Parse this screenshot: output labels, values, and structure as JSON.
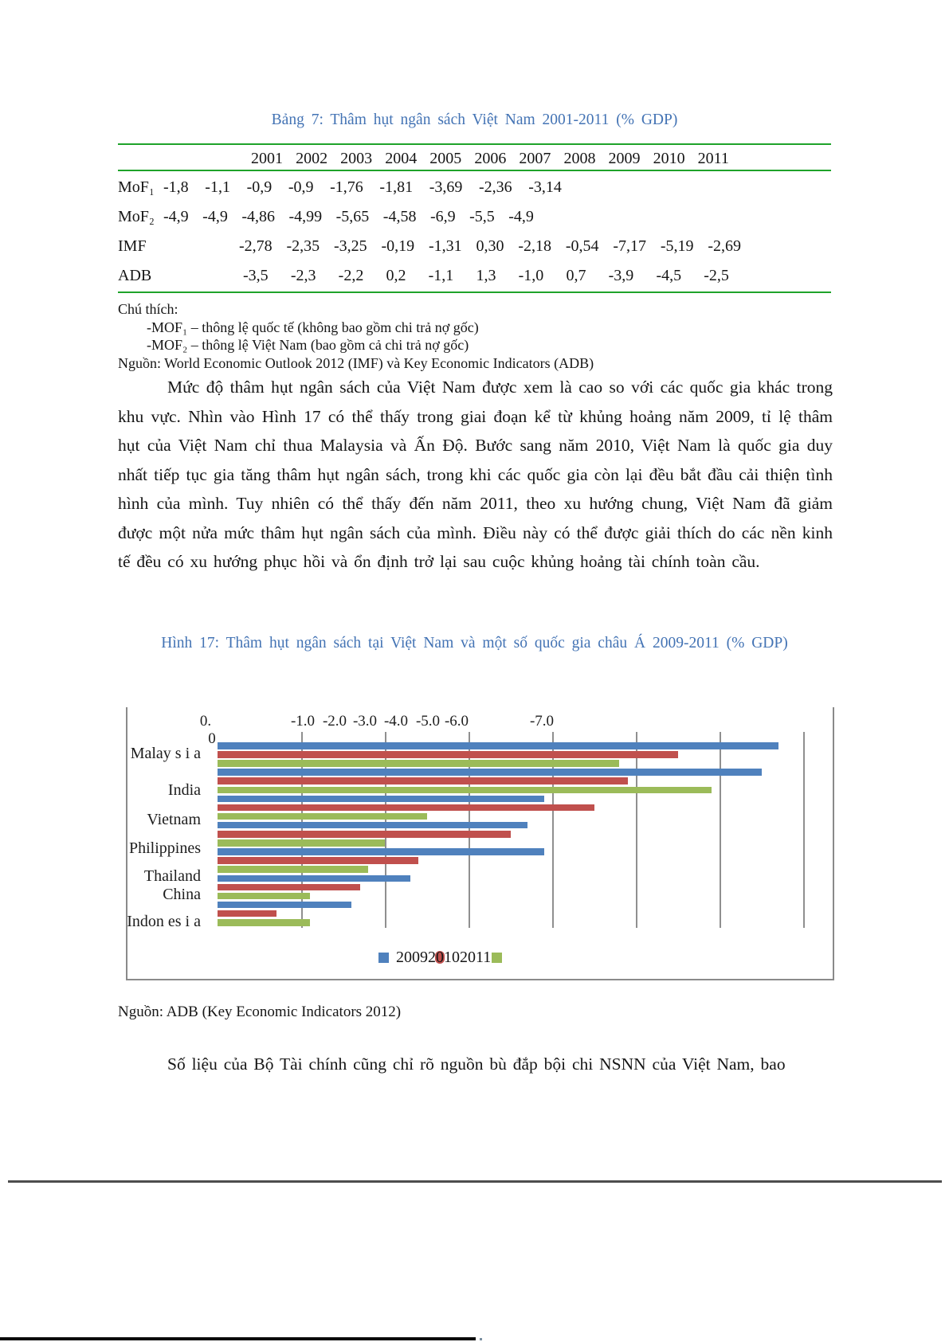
{
  "table": {
    "title": "Bảng 7: Thâm hụt ngân sách Việt Nam 2001-2011 (% GDP)",
    "years": [
      "2001",
      "2002",
      "2003",
      "2004",
      "2005",
      "2006",
      "2007",
      "2008",
      "2009",
      "2010",
      "2011"
    ],
    "rows": [
      {
        "label": "MoF₁",
        "cells": [
          "-1,8",
          "-1,1",
          "-0,9",
          "-0,9",
          "-1,76",
          "-1,81",
          "-3,69",
          "-2,36",
          "-3,14"
        ]
      },
      {
        "label": "MoF₂",
        "cells": [
          "-4,9",
          "-4,9",
          "-4,86",
          "-4,99",
          "-5,65",
          "-4,58",
          "-6,9",
          "-5,5",
          "-4,9"
        ]
      },
      {
        "label": "IMF",
        "cells": [
          "-2,78",
          "-2,35",
          "-3,25",
          "-0,19",
          "-1,31",
          "0,30",
          "-2,18",
          "-0,54",
          "-7,17",
          "-5,19",
          "-2,69"
        ]
      },
      {
        "label": "ADB",
        "cells": [
          "-3,5",
          "-2,3",
          "-2,2",
          "0,2",
          "-1,1",
          "1,3",
          "-1,0",
          "0,7",
          "-3,9",
          "-4,5",
          "-2,5"
        ]
      }
    ],
    "notes_heading": "Chú thích:",
    "notes": [
      "-MOF₁ – thông lệ quốc tế (không bao gồm chi trả nợ gốc)",
      "-MOF₂ – thông lệ Việt Nam (bao gồm cả chi trả nợ gốc)"
    ],
    "source": "Nguồn: World Economic Outlook 2012 (IMF) và Key Economic Indicators (ADB)"
  },
  "paragraph1": "Mức độ thâm hụt ngân sách của Việt Nam được xem là cao so với các quốc gia khác trong khu vực. Nhìn vào Hình 17 có thể thấy trong giai đoạn kể từ khủng hoảng năm 2009, tỉ lệ thâm hụt của Việt Nam chỉ thua Malaysia và Ấn Độ. Bước sang năm 2010, Việt Nam là quốc gia duy nhất tiếp tục gia tăng thâm hụt ngân sách, trong khi các quốc gia còn lại đều bắt đầu cải thiện tình hình của mình. Tuy nhiên có thể thấy đến năm 2011, theo xu hướng chung, Việt Nam đã giảm được một nửa mức thâm hụt ngân sách của mình. Điều này có thể được giải thích do các nền kinh tế đều có xu hướng phục hồi và ổn định trở lại sau cuộc khủng hoảng tài chính toàn cầu.",
  "figure": {
    "caption": "Hình 17: Thâm hụt ngân sách tại Việt Nam và một số quốc gia châu Á 2009-2011 (% GDP)",
    "source": "Nguồn: ADB (Key Economic Indicators 2012)"
  },
  "chart_data": {
    "type": "bar",
    "orientation": "horizontal",
    "title": "Hình 17: Thâm hụt ngân sách tại Việt Nam và một số quốc gia châu Á 2009-2011 (% GDP)",
    "categories": [
      "Malaysia",
      "India",
      "Vietnam",
      "Philippines",
      "Thailand",
      "China",
      "Indonesia"
    ],
    "category_display": [
      "Malay s i a",
      "India",
      "Vietnam",
      "Philippines",
      "Thailand",
      "China",
      "Indon es i a"
    ],
    "series": [
      {
        "name": "2009",
        "color": "#4f81bd",
        "values": [
          -6.7,
          -6.5,
          -3.9,
          -3.7,
          -3.9,
          -2.3,
          -1.6
        ]
      },
      {
        "name": "2010",
        "color": "#c0504d",
        "values": [
          -5.5,
          -4.9,
          -4.5,
          -3.5,
          -2.4,
          -1.7,
          -0.7
        ]
      },
      {
        "name": "2011",
        "color": "#9bbb59",
        "values": [
          -4.8,
          -5.9,
          -2.5,
          -2.0,
          -1.8,
          -1.1,
          -1.1
        ]
      }
    ],
    "axis_tick_labels": [
      "0.",
      "-1.0",
      "-2.0",
      "-3.0",
      "-4.0",
      "-5.0",
      "-6.0",
      "-7.0"
    ],
    "zero_label": "0",
    "xlabel": "",
    "ylabel": "",
    "unit": "% GDP",
    "xlim": [
      0,
      -7.35
    ],
    "grid": true,
    "legend_position": "bottom"
  },
  "paragraph2": "Số liệu của Bộ Tài chính cũng chỉ rõ nguồn bù đắp bội chi NSNN của Việt Nam, bao",
  "colors": {
    "caption_blue": "#4373b4",
    "table_rule_green": "#1fa32a",
    "series_2009": "#4f81bd",
    "series_2010": "#c0504d",
    "series_2011": "#9bbb59",
    "gridline_gray": "#8f8f8f"
  }
}
